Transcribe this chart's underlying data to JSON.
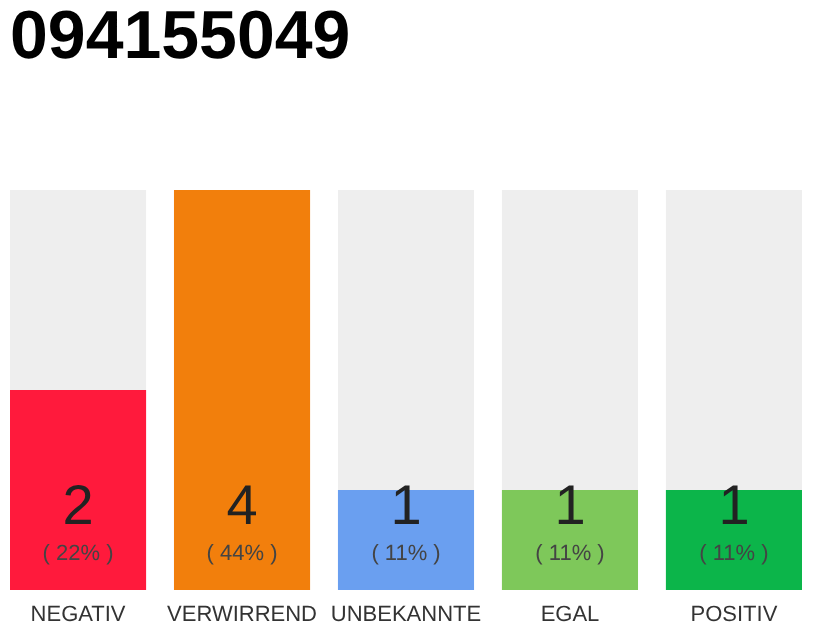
{
  "chart_data": {
    "type": "bar",
    "title": "094155049",
    "categories": [
      "NEGATIV",
      "VERWIRREND",
      "UNBEKANNTE",
      "EGAL",
      "POSITIV"
    ],
    "values": [
      2,
      4,
      1,
      1,
      1
    ],
    "colors": [
      "#ff1a3c",
      "#f27f0c",
      "#6a9ff0",
      "#7ec85a",
      "#0cb54a"
    ],
    "ylim": [
      0,
      4
    ],
    "data_labels": true,
    "grid": false,
    "tick_labels": "x",
    "annotations": [
      "( 22% )",
      "( 44% )",
      "( 11% )",
      "( 11% )",
      "( 11% )"
    ]
  }
}
